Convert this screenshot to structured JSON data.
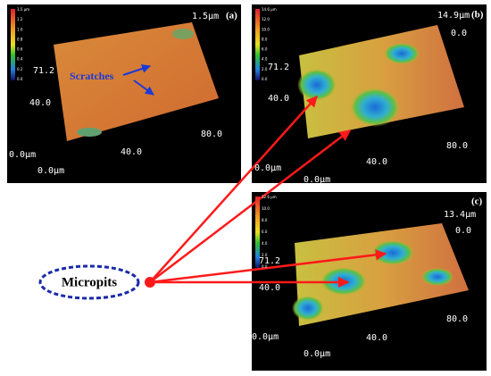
{
  "panels": [
    {
      "label": "(a)",
      "scale_top": "1.5μm",
      "colorbar": [
        "1.5 μm",
        "1.2",
        "1.0",
        "0.8",
        "0.6",
        "0.4",
        "0.2",
        "0.0"
      ],
      "y_mid": "71.2",
      "y_low": "40.0",
      "origin": "0.0μm",
      "x_mid": "40.0",
      "x_far": "80.0",
      "x_origin": "0.0μm"
    },
    {
      "label": "(b)",
      "scale_top": "14.9μm",
      "z_zero": "0.0",
      "colorbar": [
        "14.6 μm",
        "12.0",
        "10.0",
        "8.0",
        "6.0",
        "4.0",
        "2.0",
        "0.0"
      ],
      "y_mid": "71.2",
      "y_low": "40.0",
      "origin": "0.0μm",
      "x_mid": "40.0",
      "x_far": "80.0",
      "x_origin": "0.0μm"
    },
    {
      "label": "(c)",
      "scale_top": "13.4μm",
      "z_zero": "0.0",
      "colorbar": [
        "12.6 μm",
        "10.0",
        "8.0",
        "6.0",
        "4.0",
        "2.0",
        "0.0"
      ],
      "y_mid": "71.2",
      "y_low": "40.0",
      "origin": "0.0μm",
      "x_mid": "40.0",
      "x_far": "80.0",
      "x_origin": "0.0μm"
    }
  ],
  "scratches_label": "Scratches",
  "micropits_label": "Micropits"
}
